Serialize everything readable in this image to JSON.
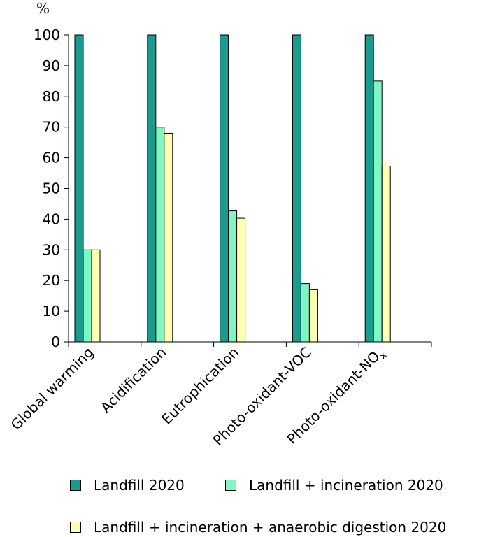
{
  "chart_data": {
    "type": "bar",
    "y_unit_label": "%",
    "categories": [
      "Global warming",
      "Acidification",
      "Eutrophication",
      "Photo-oxidant-VOC",
      "Photo-oxidant-NO"
    ],
    "category_subscripts": [
      "",
      "",
      "",
      "",
      "x"
    ],
    "series": [
      {
        "name": "Landfill 2020",
        "color": "#1a9b8e",
        "values": [
          100,
          100,
          100,
          100,
          100
        ]
      },
      {
        "name": "Landfill + incineration 2020",
        "color": "#7ef7c2",
        "values": [
          30,
          70,
          42.7,
          19,
          85
        ]
      },
      {
        "name": "Landfill + incineration + anaerobic digestion 2020",
        "color": "#ffffb3",
        "values": [
          30,
          68,
          40.3,
          17,
          57.3
        ]
      }
    ],
    "ylim": [
      0,
      100
    ],
    "yticks": [
      0,
      10,
      20,
      30,
      40,
      50,
      60,
      70,
      80,
      90,
      100
    ],
    "grid": false,
    "legend_position": "bottom"
  }
}
